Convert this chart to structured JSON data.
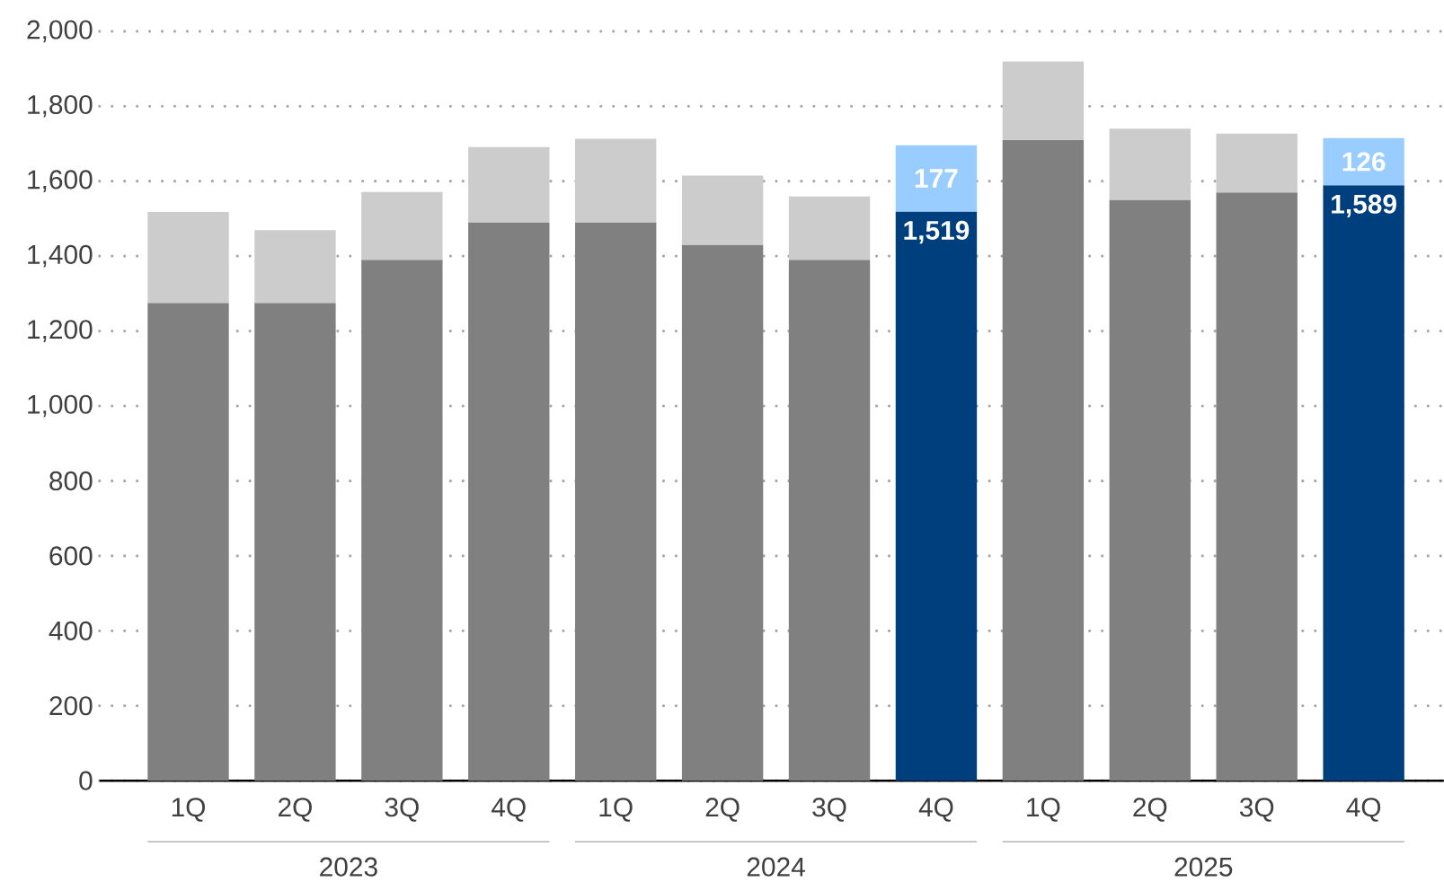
{
  "chart_data": {
    "type": "bar",
    "stacked": true,
    "grid": "y",
    "categories": [
      "1Q",
      "2Q",
      "3Q",
      "4Q",
      "1Q",
      "2Q",
      "3Q",
      "4Q",
      "1Q",
      "2Q",
      "3Q",
      "4Q"
    ],
    "series": [
      {
        "colors": [
          "#808080",
          "#808080",
          "#808080",
          "#808080",
          "#808080",
          "#808080",
          "#808080",
          "#003f7d",
          "#808080",
          "#808080",
          "#808080",
          "#003f7d"
        ],
        "values": [
          1275,
          1275,
          1390,
          1490,
          1490,
          1430,
          1390,
          1519,
          1710,
          1550,
          1570,
          1589
        ],
        "value_labels": [
          null,
          null,
          null,
          null,
          null,
          null,
          null,
          "1,519",
          null,
          null,
          null,
          "1,589"
        ]
      },
      {
        "colors": [
          "#cccccc",
          "#cccccc",
          "#cccccc",
          "#cccccc",
          "#cccccc",
          "#cccccc",
          "#cccccc",
          "#99ccff",
          "#cccccc",
          "#cccccc",
          "#cccccc",
          "#99ccff"
        ],
        "values": [
          243,
          194,
          181,
          201,
          223,
          185,
          169,
          177,
          209,
          190,
          157,
          126
        ],
        "value_labels": [
          null,
          null,
          null,
          null,
          null,
          null,
          null,
          "177",
          null,
          null,
          null,
          "126"
        ]
      }
    ],
    "ylim": [
      0,
      2000
    ],
    "yticks": [
      0,
      200,
      400,
      600,
      800,
      {
        "value": 1000,
        "label": "1,000"
      },
      {
        "value": 1200,
        "label": "1,200"
      },
      {
        "value": 1400,
        "label": "1,400"
      },
      {
        "value": 1600,
        "label": "1,600"
      },
      {
        "value": 1800,
        "label": "1,800"
      },
      {
        "value": 2000,
        "label": "2,000"
      }
    ],
    "annotations": [
      "2023",
      "2024",
      "2025"
    ]
  }
}
